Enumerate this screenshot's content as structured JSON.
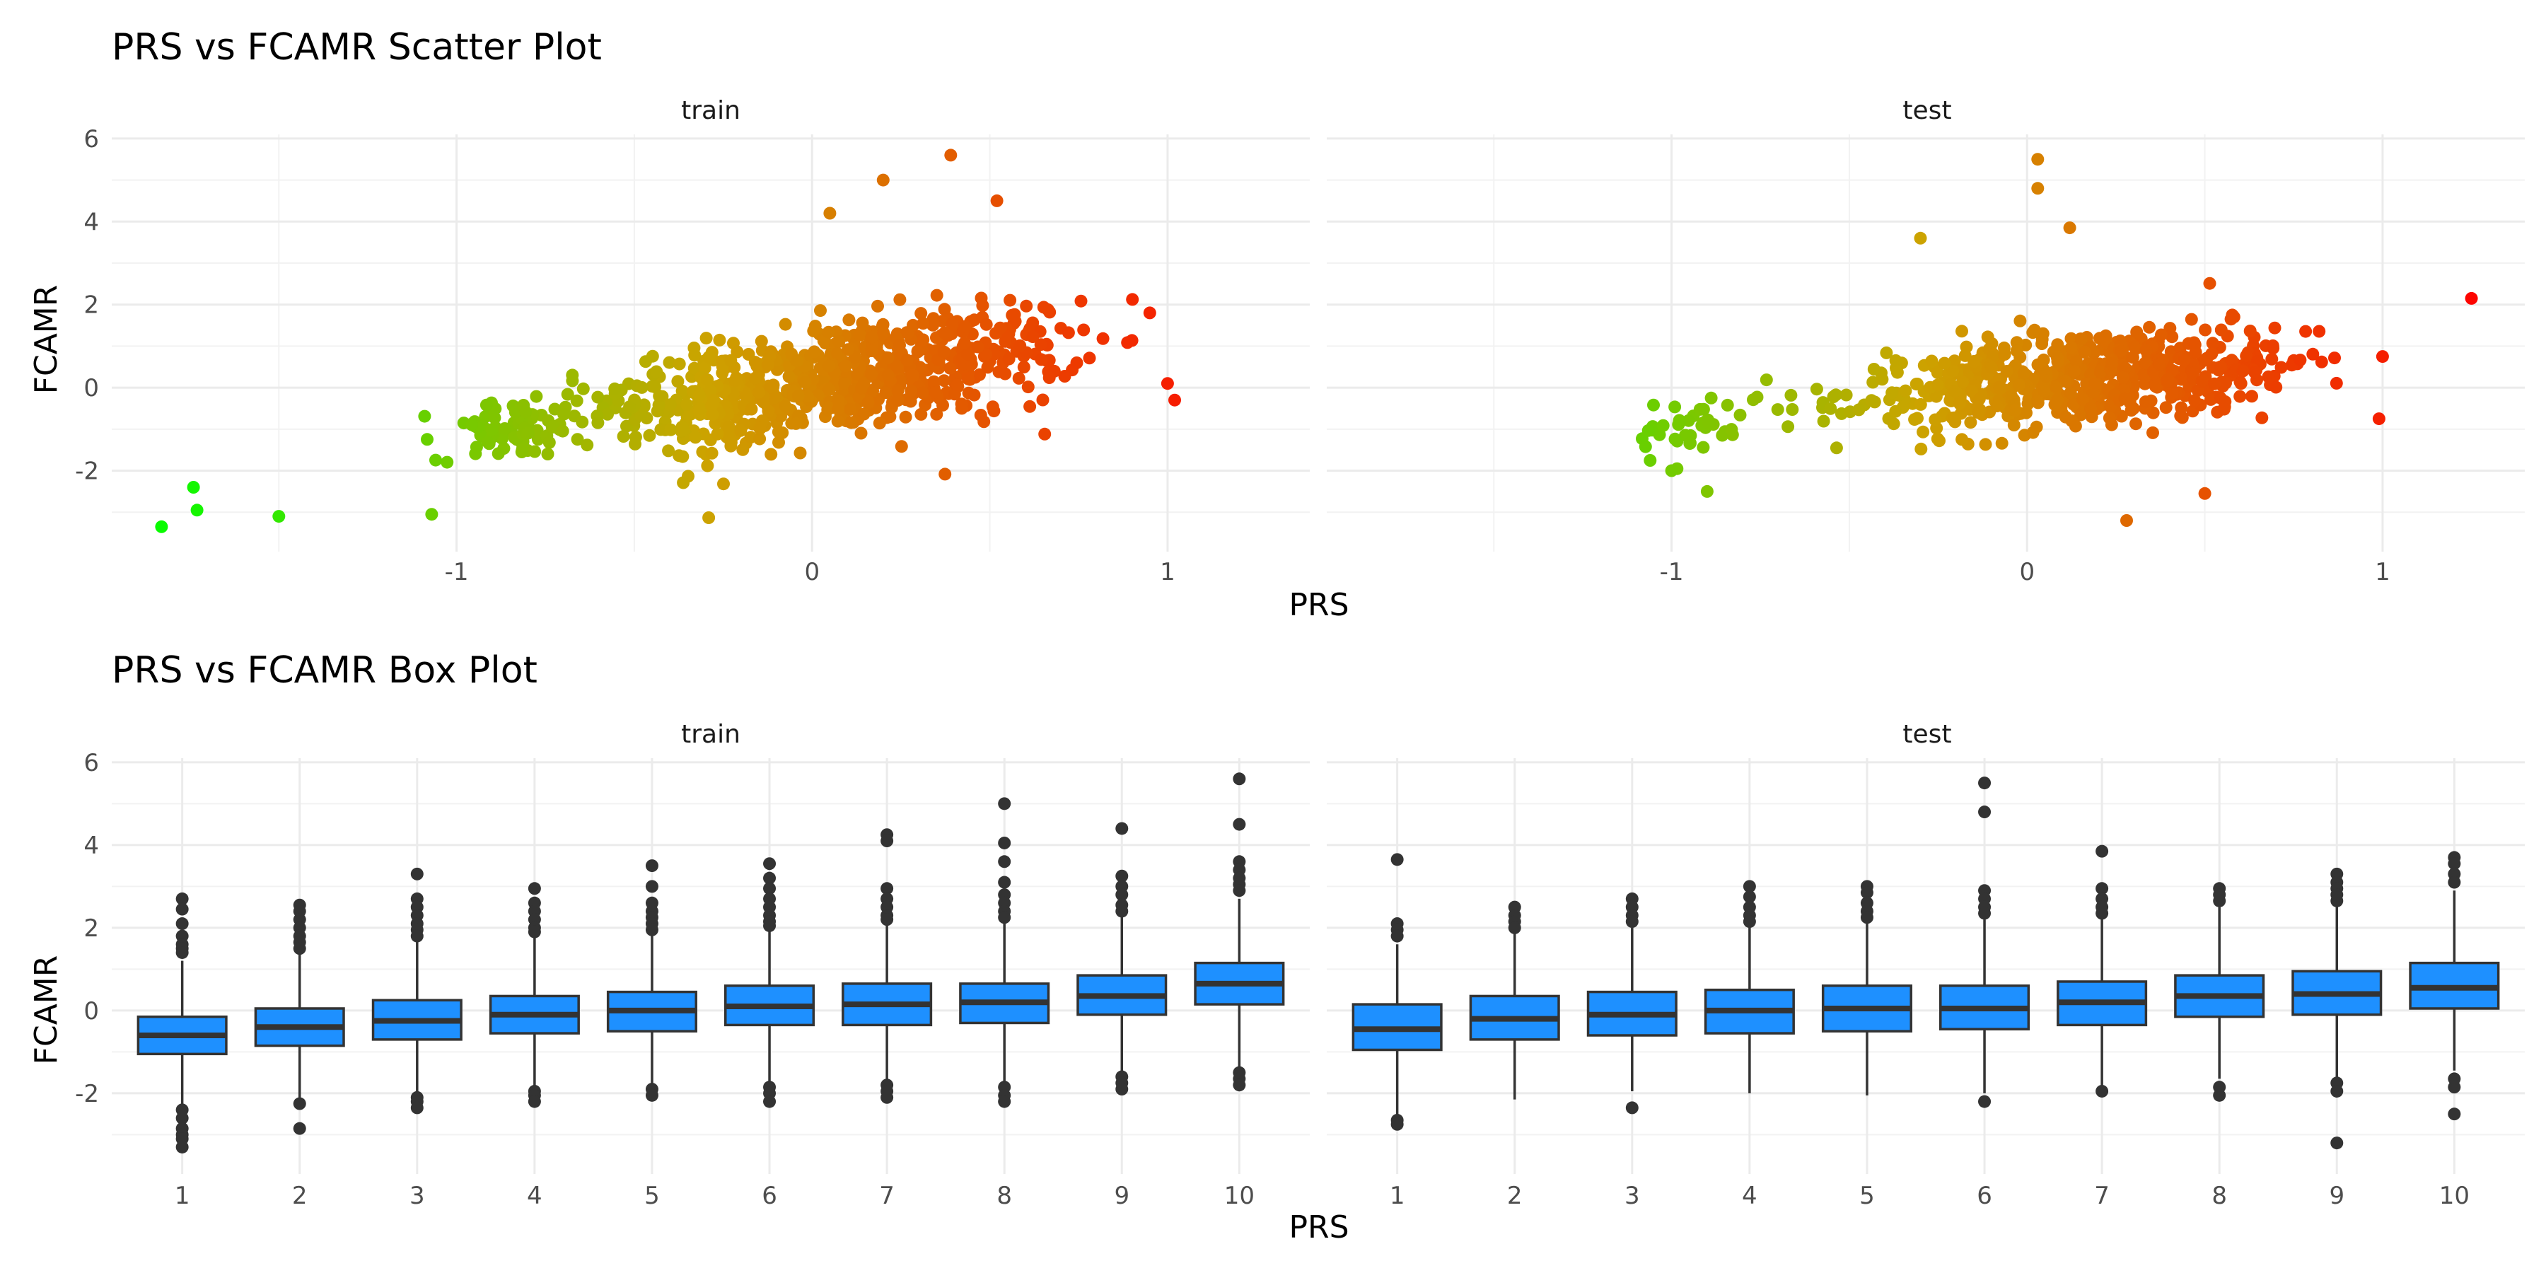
{
  "colors": {
    "box_fill": "#1e90ff",
    "box_line": "#333333",
    "outlier": "#333333",
    "grad_low": "#00ff00",
    "grad_mid": "#cca300",
    "grad_high": "#ff0000"
  },
  "chart_data": [
    {
      "type": "scatter",
      "title": "PRS vs FCAMR Scatter Plot",
      "xlabel": "PRS",
      "ylabel": "FCAMR",
      "panels": [
        "train",
        "test"
      ],
      "xlim": [
        -1.97,
        1.4
      ],
      "ylim": [
        -3.95,
        6.1
      ],
      "x_ticks": [
        "-1",
        "0",
        "1"
      ],
      "x_tick_values": [
        -1,
        0,
        1
      ],
      "y_ticks": [
        "6",
        "4",
        "2",
        "0",
        "-2"
      ],
      "y_tick_values": [
        6,
        4,
        2,
        0,
        -2
      ],
      "color_by": "PRS",
      "clusters": {
        "train": [
          {
            "cx": 0.05,
            "cy": 0.2,
            "sx": 0.22,
            "sy": 0.75,
            "n": 420,
            "cov": 0.45
          },
          {
            "cx": -0.25,
            "cy": -0.3,
            "sx": 0.12,
            "sy": 0.75,
            "n": 120,
            "cov": 0.2
          },
          {
            "cx": 0.45,
            "cy": 0.6,
            "sx": 0.15,
            "sy": 0.7,
            "n": 150,
            "cov": 0.3
          },
          {
            "cx": -0.85,
            "cy": -1.0,
            "sx": 0.1,
            "sy": 0.35,
            "n": 80,
            "cov": 0.1
          },
          {
            "cx": -0.55,
            "cy": -0.5,
            "sx": 0.12,
            "sy": 0.35,
            "n": 40,
            "cov": 0.1
          }
        ],
        "test": [
          {
            "cx": 0.15,
            "cy": 0.25,
            "sx": 0.22,
            "sy": 0.6,
            "n": 380,
            "cov": 0.3
          },
          {
            "cx": -0.15,
            "cy": 0.0,
            "sx": 0.12,
            "sy": 0.6,
            "n": 100,
            "cov": 0.1
          },
          {
            "cx": 0.55,
            "cy": 0.5,
            "sx": 0.14,
            "sy": 0.5,
            "n": 110,
            "cov": 0.2
          },
          {
            "cx": -0.95,
            "cy": -1.0,
            "sx": 0.08,
            "sy": 0.4,
            "n": 40,
            "cov": 0.1
          },
          {
            "cx": -0.6,
            "cy": -0.3,
            "sx": 0.12,
            "sy": 0.35,
            "n": 20,
            "cov": 0.1
          }
        ]
      },
      "notable_points": {
        "train": [
          [
            -1.83,
            -3.35
          ],
          [
            -1.74,
            -2.4
          ],
          [
            -1.73,
            -2.95
          ],
          [
            -1.5,
            -3.1
          ],
          [
            -1.07,
            -3.05
          ],
          [
            0.2,
            5.0
          ],
          [
            0.39,
            5.6
          ],
          [
            0.52,
            4.5
          ],
          [
            1.0,
            0.1
          ],
          [
            1.02,
            -0.3
          ],
          [
            0.95,
            1.8
          ],
          [
            0.05,
            4.2
          ]
        ],
        "test": [
          [
            0.03,
            5.5
          ],
          [
            0.03,
            4.8
          ],
          [
            -0.3,
            3.6
          ],
          [
            0.12,
            3.85
          ],
          [
            1.25,
            2.15
          ],
          [
            0.99,
            -0.75
          ],
          [
            1.0,
            0.75
          ],
          [
            0.28,
            -3.2
          ],
          [
            0.5,
            -2.55
          ],
          [
            -1.0,
            -2.0
          ],
          [
            -0.9,
            -2.5
          ]
        ]
      }
    },
    {
      "type": "box",
      "title": "PRS vs FCAMR Box Plot",
      "xlabel": "PRS",
      "ylabel": "FCAMR",
      "panels": [
        "train",
        "test"
      ],
      "categories": [
        "1",
        "2",
        "3",
        "4",
        "5",
        "6",
        "7",
        "8",
        "9",
        "10"
      ],
      "ylim": [
        -3.95,
        6.1
      ],
      "y_ticks": [
        "6",
        "4",
        "2",
        "0",
        "-2"
      ],
      "y_tick_values": [
        6,
        4,
        2,
        0,
        -2
      ],
      "boxes": {
        "train": [
          {
            "q1": -1.05,
            "median": -0.6,
            "q3": -0.15,
            "lo": -2.3,
            "hi": 1.2,
            "outliers": [
              2.7,
              2.45,
              2.1,
              1.8,
              1.6,
              1.5,
              1.4,
              -2.4,
              -2.6,
              -2.85,
              -3.0,
              -3.1,
              -3.3
            ]
          },
          {
            "q1": -0.85,
            "median": -0.4,
            "q3": 0.05,
            "lo": -2.1,
            "hi": 1.4,
            "outliers": [
              2.55,
              2.4,
              2.2,
              2.0,
              1.8,
              1.65,
              1.5,
              -2.25,
              -2.85
            ]
          },
          {
            "q1": -0.7,
            "median": -0.25,
            "q3": 0.25,
            "lo": -2.0,
            "hi": 1.7,
            "outliers": [
              3.3,
              2.7,
              2.5,
              2.3,
              2.1,
              1.95,
              1.8,
              -2.1,
              -2.2,
              -2.35
            ]
          },
          {
            "q1": -0.55,
            "median": -0.1,
            "q3": 0.35,
            "lo": -1.9,
            "hi": 1.8,
            "outliers": [
              2.95,
              2.6,
              2.4,
              2.2,
              2.0,
              1.9,
              -1.95,
              -2.05,
              -2.2
            ]
          },
          {
            "q1": -0.5,
            "median": 0.0,
            "q3": 0.45,
            "lo": -1.85,
            "hi": 1.85,
            "outliers": [
              3.5,
              3.0,
              2.6,
              2.4,
              2.25,
              2.1,
              1.95,
              -1.9,
              -2.05
            ]
          },
          {
            "q1": -0.35,
            "median": 0.1,
            "q3": 0.6,
            "lo": -1.8,
            "hi": 1.95,
            "outliers": [
              3.55,
              3.2,
              2.95,
              2.7,
              2.5,
              2.3,
              2.15,
              2.05,
              -1.85,
              -2.0,
              -2.2
            ]
          },
          {
            "q1": -0.35,
            "median": 0.15,
            "q3": 0.65,
            "lo": -1.75,
            "hi": 2.1,
            "outliers": [
              4.25,
              4.1,
              2.95,
              2.7,
              2.5,
              2.3,
              2.2,
              -1.8,
              -1.95,
              -2.1
            ]
          },
          {
            "q1": -0.3,
            "median": 0.2,
            "q3": 0.65,
            "lo": -1.8,
            "hi": 2.1,
            "outliers": [
              5.0,
              4.05,
              3.6,
              3.1,
              2.8,
              2.6,
              2.4,
              2.25,
              -1.85,
              -2.05,
              -2.2
            ]
          },
          {
            "q1": -0.1,
            "median": 0.35,
            "q3": 0.85,
            "lo": -1.5,
            "hi": 2.3,
            "outliers": [
              4.4,
              3.25,
              3.0,
              2.8,
              2.55,
              2.4,
              -1.6,
              -1.75,
              -1.9
            ]
          },
          {
            "q1": 0.15,
            "median": 0.65,
            "q3": 1.15,
            "lo": -1.4,
            "hi": 2.7,
            "outliers": [
              5.6,
              4.5,
              3.6,
              3.4,
              3.2,
              3.05,
              2.9,
              -1.5,
              -1.65,
              -1.8
            ]
          }
        ],
        "test": [
          {
            "q1": -0.95,
            "median": -0.45,
            "q3": 0.15,
            "lo": -2.55,
            "hi": 1.6,
            "outliers": [
              3.65,
              2.1,
              1.95,
              1.8,
              -2.65,
              -2.75
            ]
          },
          {
            "q1": -0.7,
            "median": -0.2,
            "q3": 0.35,
            "lo": -2.15,
            "hi": 1.9,
            "outliers": [
              2.5,
              2.3,
              2.15,
              2.0
            ]
          },
          {
            "q1": -0.6,
            "median": -0.1,
            "q3": 0.45,
            "lo": -1.95,
            "hi": 2.0,
            "outliers": [
              2.7,
              2.5,
              2.3,
              2.15,
              -2.35
            ]
          },
          {
            "q1": -0.55,
            "median": 0.0,
            "q3": 0.5,
            "lo": -2.0,
            "hi": 2.05,
            "outliers": [
              3.0,
              2.75,
              2.5,
              2.3,
              2.15
            ]
          },
          {
            "q1": -0.5,
            "median": 0.05,
            "q3": 0.6,
            "lo": -2.05,
            "hi": 2.15,
            "outliers": [
              3.0,
              2.85,
              2.6,
              2.4,
              2.25
            ]
          },
          {
            "q1": -0.45,
            "median": 0.05,
            "q3": 0.6,
            "lo": -2.0,
            "hi": 2.2,
            "outliers": [
              5.5,
              4.8,
              2.9,
              2.7,
              2.5,
              2.35,
              -2.2
            ]
          },
          {
            "q1": -0.35,
            "median": 0.2,
            "q3": 0.7,
            "lo": -1.85,
            "hi": 2.25,
            "outliers": [
              3.85,
              2.95,
              2.7,
              2.5,
              2.35,
              -1.95
            ]
          },
          {
            "q1": -0.15,
            "median": 0.35,
            "q3": 0.85,
            "lo": -1.65,
            "hi": 2.5,
            "outliers": [
              2.95,
              2.8,
              2.65,
              -1.85,
              -2.05
            ]
          },
          {
            "q1": -0.1,
            "median": 0.4,
            "q3": 0.95,
            "lo": -1.6,
            "hi": 2.55,
            "outliers": [
              3.3,
              3.1,
              2.95,
              2.8,
              2.65,
              -1.75,
              -1.95,
              -3.2
            ]
          },
          {
            "q1": 0.05,
            "median": 0.55,
            "q3": 1.15,
            "lo": -1.45,
            "hi": 2.9,
            "outliers": [
              3.7,
              3.55,
              3.3,
              3.1,
              -1.65,
              -1.85,
              -2.5
            ]
          }
        ]
      }
    }
  ]
}
